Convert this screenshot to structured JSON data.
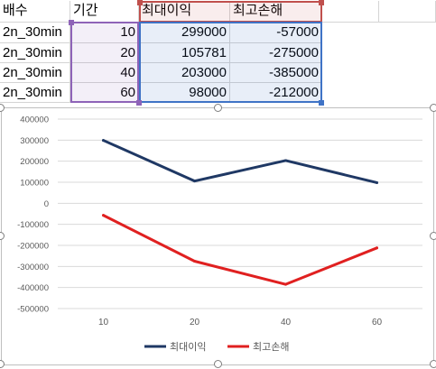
{
  "sheet": {
    "headers": [
      "배수",
      "기간",
      "최대이익",
      "최고손해"
    ],
    "rows": [
      [
        "2n_30min",
        "10",
        "299000",
        "-57000"
      ],
      [
        "2n_30min",
        "20",
        "105781",
        "-275000"
      ],
      [
        "2n_30min",
        "40",
        "203000",
        "-385000"
      ],
      [
        "2n_30min",
        "60",
        "98000",
        "-212000"
      ]
    ]
  },
  "colors": {
    "series1": "#1f3864",
    "series2": "#e02020",
    "selection_purple": "#8e63b8",
    "selection_blue": "#3f73c6",
    "selection_red": "#c0504d"
  },
  "chart_data": {
    "type": "line",
    "categories": [
      "10",
      "20",
      "40",
      "60"
    ],
    "series": [
      {
        "name": "최대이익",
        "values": [
          299000,
          105781,
          203000,
          98000
        ],
        "color": "#1f3864"
      },
      {
        "name": "최고손해",
        "values": [
          -57000,
          -275000,
          -385000,
          -212000
        ],
        "color": "#e02020"
      }
    ],
    "ylim": [
      -500000,
      400000
    ],
    "yticks": [
      "400000",
      "300000",
      "200000",
      "100000",
      "0",
      "-100000",
      "-200000",
      "-300000",
      "-400000",
      "-500000"
    ],
    "grid": true,
    "legend": "bottom"
  }
}
